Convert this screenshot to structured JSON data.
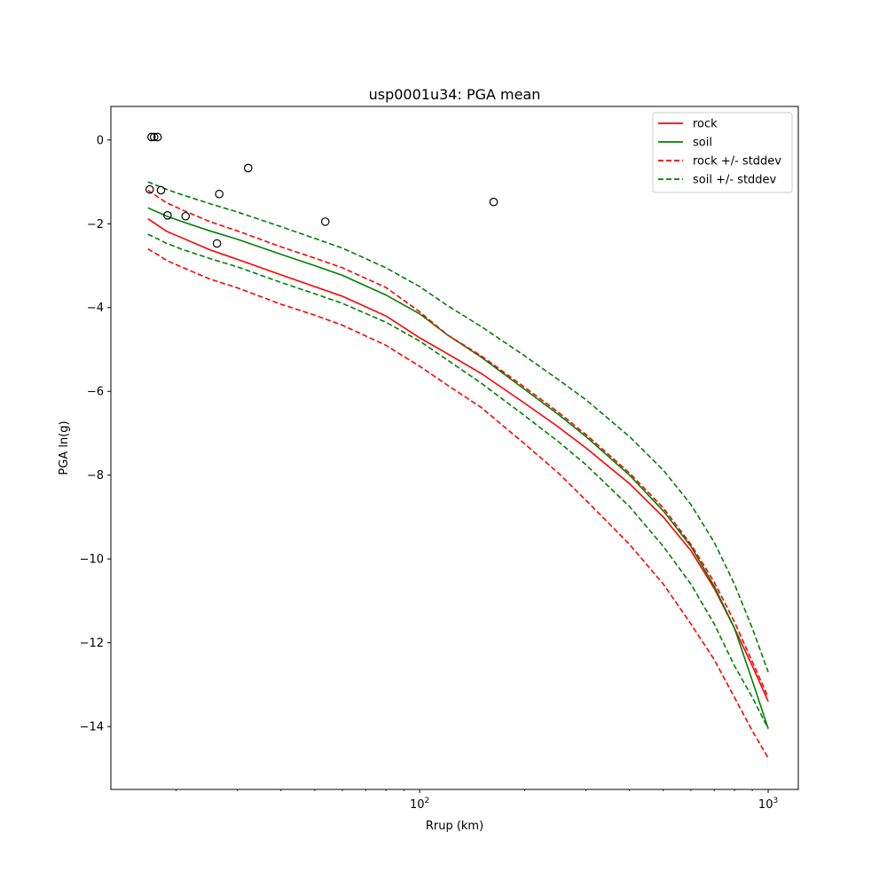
{
  "chart_data": {
    "type": "line",
    "title": "usp0001u34: PGA mean",
    "xlabel": "Rrup (km)",
    "ylabel": "PGA ln(g)",
    "xscale": "log",
    "xlim": [
      13.0,
      1220.0
    ],
    "ylim": [
      -15.5,
      0.8
    ],
    "xticks_major": [
      {
        "value": 100,
        "base": "10",
        "exp": "2"
      },
      {
        "value": 1000,
        "base": "10",
        "exp": "3"
      }
    ],
    "yticks": [
      {
        "value": 0,
        "label": "0"
      },
      {
        "value": -2,
        "label": "−2"
      },
      {
        "value": -4,
        "label": "−4"
      },
      {
        "value": -6,
        "label": "−6"
      },
      {
        "value": -8,
        "label": "−8"
      },
      {
        "value": -10,
        "label": "−10"
      },
      {
        "value": -12,
        "label": "−12"
      },
      {
        "value": -14,
        "label": "−14"
      }
    ],
    "grid": false,
    "legend_position": "top-right",
    "series": [
      {
        "name": "rock",
        "color": "#ff0000",
        "style": "solid",
        "x": [
          16.6,
          17.8,
          18.8,
          21,
          25,
          30,
          40,
          50,
          60,
          80,
          100,
          120,
          150,
          200,
          250,
          300,
          400,
          500,
          600,
          700,
          800,
          900,
          1000
        ],
        "y": [
          -1.88,
          -2.05,
          -2.18,
          -2.35,
          -2.62,
          -2.85,
          -3.22,
          -3.5,
          -3.73,
          -4.2,
          -4.72,
          -5.1,
          -5.57,
          -6.28,
          -6.85,
          -7.35,
          -8.2,
          -9.0,
          -9.8,
          -10.7,
          -11.65,
          -12.55,
          -13.4
        ]
      },
      {
        "name": "soil",
        "color": "#008000",
        "style": "solid",
        "x": [
          16.6,
          17.8,
          18.8,
          21,
          25,
          30,
          40,
          50,
          60,
          80,
          100,
          120,
          150,
          200,
          250,
          300,
          400,
          500,
          600,
          700,
          800,
          900,
          1000
        ],
        "y": [
          -1.62,
          -1.73,
          -1.82,
          -1.96,
          -2.17,
          -2.37,
          -2.73,
          -3.0,
          -3.23,
          -3.7,
          -4.15,
          -4.65,
          -5.18,
          -5.95,
          -6.55,
          -7.08,
          -8.0,
          -8.85,
          -9.7,
          -10.65,
          -11.65,
          -12.9,
          -14.05
        ]
      },
      {
        "name": "rock +/- stddev",
        "color": "#ff0000",
        "style": "dashed",
        "x": [
          16.6,
          17.8,
          18.8,
          21,
          25,
          30,
          40,
          50,
          60,
          80,
          100,
          120,
          150,
          200,
          250,
          300,
          400,
          500,
          600,
          700,
          800,
          900,
          1000
        ],
        "y": [
          -1.2,
          -1.37,
          -1.5,
          -1.68,
          -1.95,
          -2.17,
          -2.55,
          -2.82,
          -3.05,
          -3.52,
          -4.1,
          -4.65,
          -5.15,
          -5.9,
          -6.5,
          -7.03,
          -7.95,
          -8.78,
          -9.65,
          -10.55,
          -11.5,
          -12.45,
          -13.3
        ]
      },
      {
        "name": "rock +/- stddev (lower)",
        "color": "#ff0000",
        "style": "dashed",
        "x": [
          16.6,
          17.8,
          18.8,
          21,
          25,
          30,
          40,
          50,
          60,
          80,
          100,
          120,
          150,
          200,
          250,
          300,
          400,
          500,
          600,
          700,
          800,
          900,
          1000
        ],
        "y": [
          -2.6,
          -2.75,
          -2.88,
          -3.05,
          -3.32,
          -3.53,
          -3.92,
          -4.18,
          -4.42,
          -4.9,
          -5.4,
          -5.85,
          -6.38,
          -7.25,
          -7.95,
          -8.6,
          -9.65,
          -10.6,
          -11.55,
          -12.4,
          -13.3,
          -14.1,
          -14.75
        ]
      },
      {
        "name": "soil +/- stddev",
        "color": "#008000",
        "style": "dashed",
        "x": [
          16.6,
          17.8,
          18.8,
          21,
          25,
          30,
          40,
          50,
          60,
          80,
          100,
          120,
          150,
          200,
          250,
          300,
          400,
          500,
          600,
          700,
          800,
          900,
          1000
        ],
        "y": [
          -1.0,
          -1.1,
          -1.18,
          -1.32,
          -1.52,
          -1.72,
          -2.07,
          -2.35,
          -2.58,
          -3.05,
          -3.5,
          -3.95,
          -4.45,
          -5.15,
          -5.72,
          -6.2,
          -7.08,
          -7.88,
          -8.7,
          -9.6,
          -10.6,
          -11.65,
          -12.7
        ]
      },
      {
        "name": "soil +/- stddev (lower)",
        "color": "#008000",
        "style": "dashed",
        "x": [
          16.6,
          17.8,
          18.8,
          21,
          25,
          30,
          40,
          50,
          60,
          80,
          100,
          120,
          150,
          200,
          250,
          300,
          400,
          500,
          600,
          700,
          800,
          900,
          1000
        ],
        "y": [
          -2.25,
          -2.37,
          -2.47,
          -2.62,
          -2.83,
          -3.03,
          -3.4,
          -3.67,
          -3.9,
          -4.35,
          -4.8,
          -5.25,
          -5.8,
          -6.58,
          -7.2,
          -7.75,
          -8.75,
          -9.7,
          -10.6,
          -11.55,
          -12.55,
          -13.3,
          -14.05
        ]
      }
    ],
    "observations": {
      "marker": "open-circle",
      "color": "#000000",
      "x": [
        16.8,
        17.0,
        17.3,
        17.7,
        18.1,
        18.9,
        21.3,
        26.2,
        26.6,
        32.2,
        53.6,
        163.0
      ],
      "y": [
        -1.18,
        0.07,
        0.07,
        0.07,
        -1.2,
        -1.8,
        -1.82,
        -2.47,
        -1.29,
        -0.67,
        -1.95,
        -1.48
      ]
    },
    "legend": [
      {
        "label": "rock",
        "color": "#ff0000",
        "style": "solid"
      },
      {
        "label": "soil",
        "color": "#008000",
        "style": "solid"
      },
      {
        "label": "rock +/- stddev",
        "color": "#ff0000",
        "style": "dashed"
      },
      {
        "label": "soil +/- stddev",
        "color": "#008000",
        "style": "dashed"
      }
    ]
  }
}
